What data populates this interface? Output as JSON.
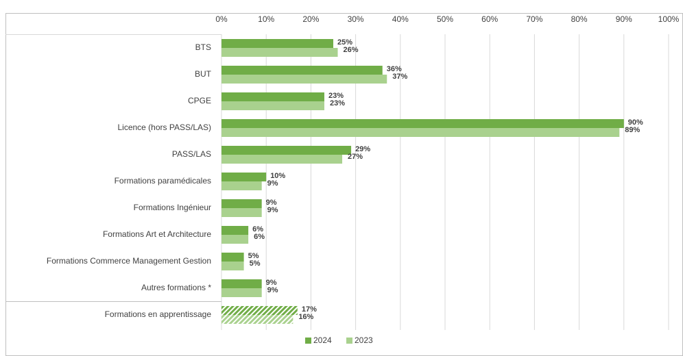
{
  "chart_data": {
    "type": "bar",
    "orientation": "horizontal",
    "categories": [
      "BTS",
      "BUT",
      "CPGE",
      "Licence (hors PASS/LAS)",
      "PASS/LAS",
      "Formations paramédicales",
      "Formations Ingénieur",
      "Formations Art et Architecture",
      "Formations Commerce Management Gestion",
      "Autres formations *",
      "Formations en apprentissage"
    ],
    "series": [
      {
        "name": "2024",
        "color": "#70ad47",
        "label_color": "#375623",
        "values": [
          25,
          36,
          23,
          90,
          29,
          10,
          9,
          6,
          5,
          9,
          17
        ],
        "value_labels": [
          "25%",
          "36%",
          "23%",
          "90%",
          "29%",
          "10%",
          "9%",
          "6%",
          "5%",
          "9%",
          "17%"
        ]
      },
      {
        "name": "2023",
        "color": "#a9d18e",
        "label_color": "#70ad47",
        "values": [
          26,
          37,
          23,
          89,
          27,
          9,
          9,
          6,
          5,
          9,
          16
        ],
        "value_labels": [
          "26%",
          "37%",
          "23%",
          "89%",
          "27%",
          "9%",
          "9%",
          "6%",
          "5%",
          "9%",
          "16%"
        ]
      }
    ],
    "hatched": [
      10
    ],
    "xlim": [
      0,
      100
    ],
    "xticks": [
      {
        "value": 0,
        "label": "0%"
      },
      {
        "value": 10,
        "label": "10%"
      },
      {
        "value": 20,
        "label": "20%"
      },
      {
        "value": 30,
        "label": "30%"
      },
      {
        "value": 40,
        "label": "40%"
      },
      {
        "value": 50,
        "label": "50%"
      },
      {
        "value": 60,
        "label": "60%"
      },
      {
        "value": 70,
        "label": "70%"
      },
      {
        "value": 80,
        "label": "80%"
      },
      {
        "value": 90,
        "label": "90%"
      },
      {
        "value": 100,
        "label": "100%"
      }
    ],
    "grid": true,
    "legend": "bottom"
  }
}
